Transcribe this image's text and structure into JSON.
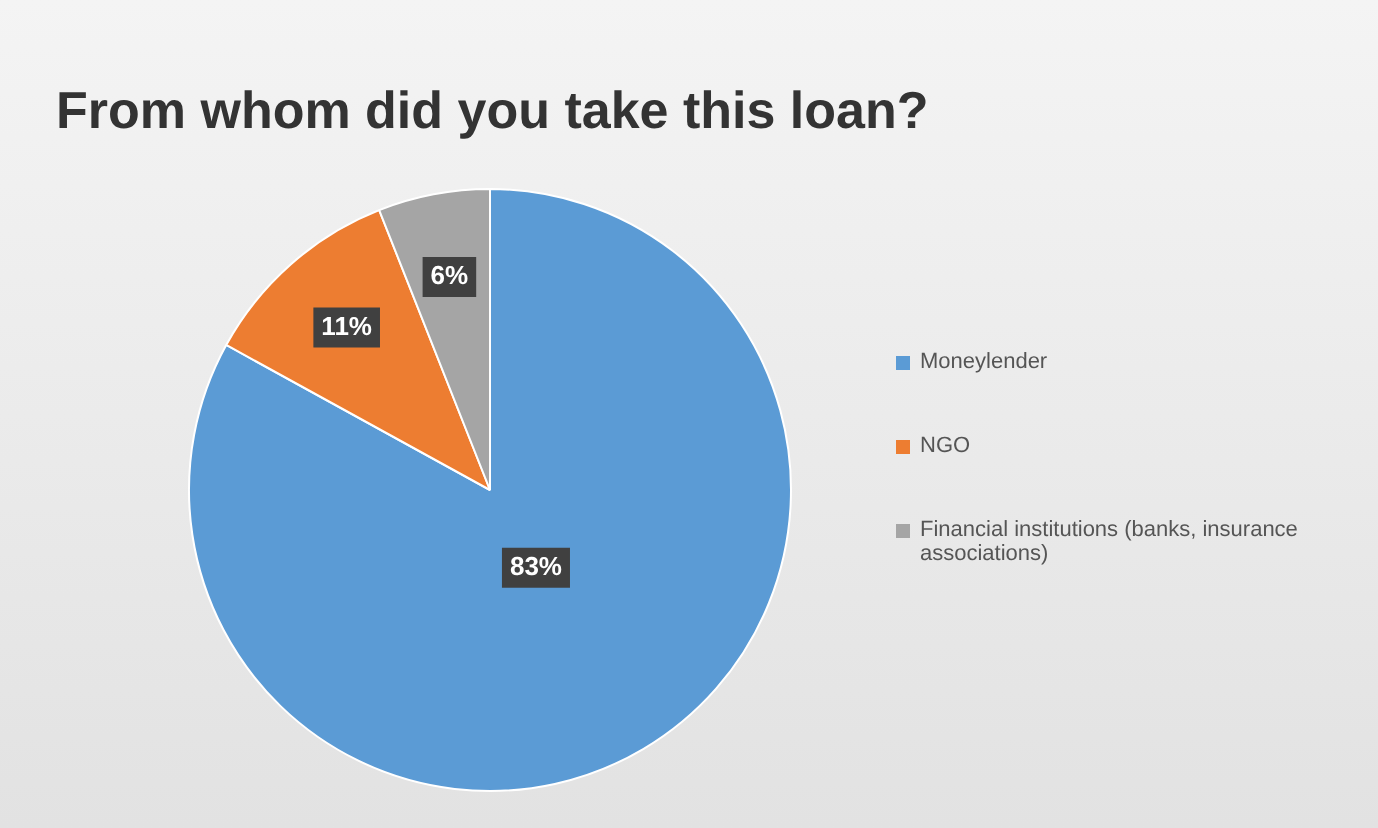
{
  "chart_data": {
    "type": "pie",
    "title": "From whom did you take this loan?",
    "categories": [
      "Moneylender",
      "NGO",
      "Financial institutions (banks, insurance associations)"
    ],
    "values": [
      83,
      11,
      6
    ],
    "colors": [
      "#5b9bd5",
      "#ed7d31",
      "#a5a5a5"
    ],
    "value_labels": [
      "83%",
      "11%",
      "6%"
    ],
    "legend": "right"
  }
}
